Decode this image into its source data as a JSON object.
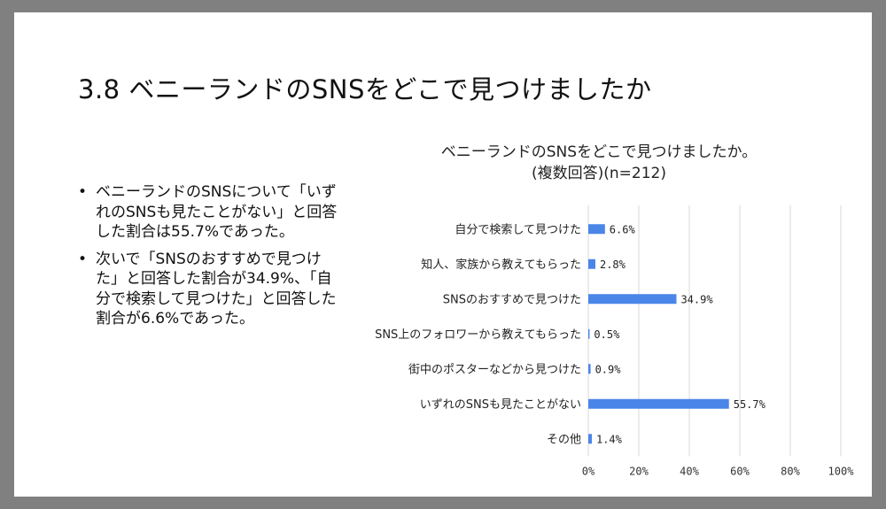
{
  "slide": {
    "title": "3.8 ベニーランドのSNSをどこで見つけましたか",
    "bullets": [
      "ベニーランドのSNSについて「いずれのSNSも見たことがない」と回答した割合は55.7%であった。",
      "次いで「SNSのおすすめで見つけた」と回答した割合が34.9%、「自分で検索して見つけた」と回答した割合が6.6%であった。"
    ]
  },
  "chart_data": {
    "type": "bar",
    "orientation": "horizontal",
    "title": "ベニーランドのSNSをどこで見つけましたか。",
    "subtitle": "(複数回答)(n=212)",
    "categories": [
      "自分で検索して見つけた",
      "知人、家族から教えてもらった",
      "SNSのおすすめで見つけた",
      "SNS上のフォロワーから教えてもらった",
      "街中のポスターなどから見つけた",
      "いずれのSNSも見たことがない",
      "その他"
    ],
    "values": [
      6.6,
      2.8,
      34.9,
      0.5,
      0.9,
      55.7,
      1.4
    ],
    "value_labels": [
      "6.6%",
      "2.8%",
      "34.9%",
      "0.5%",
      "0.9%",
      "55.7%",
      "1.4%"
    ],
    "xlim": [
      0,
      100
    ],
    "xticks": [
      "0%",
      "20%",
      "40%",
      "60%",
      "80%",
      "100%"
    ],
    "grid": true,
    "bar_color": "#4a86e8",
    "grid_color": "#d9d9d9",
    "legend": "none"
  }
}
